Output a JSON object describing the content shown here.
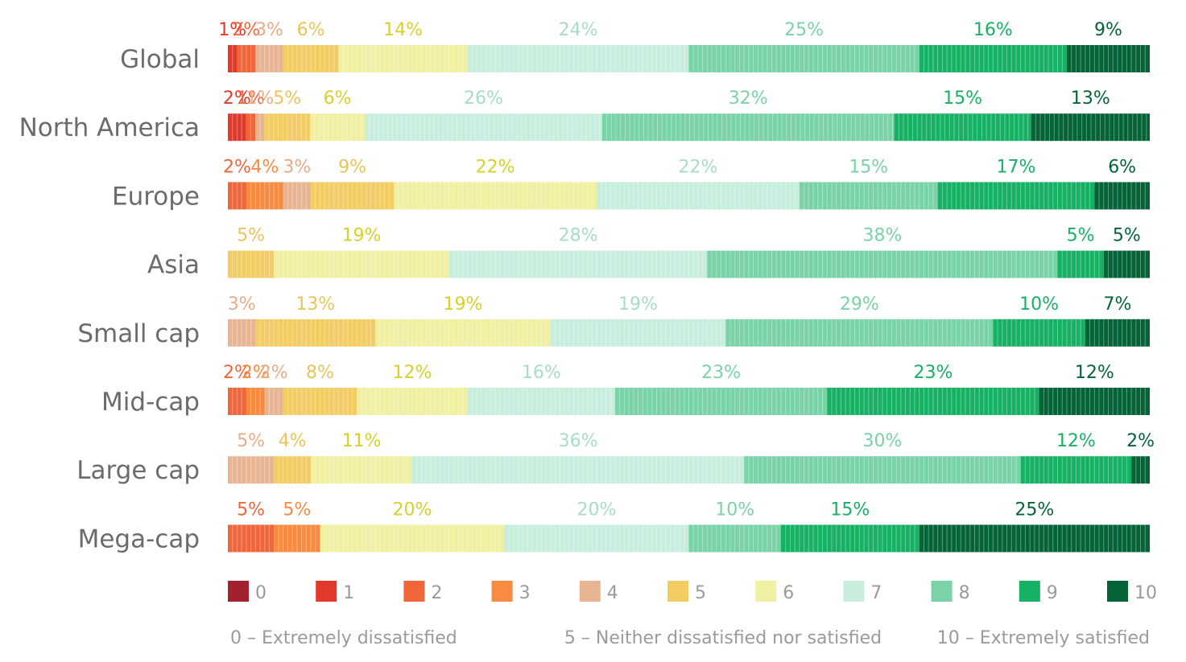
{
  "chart_data": {
    "type": "bar",
    "orientation": "horizontal",
    "stacked": true,
    "normalized": true,
    "categories": [
      "Global",
      "North America",
      "Europe",
      "Asia",
      "Small cap",
      "Mid-cap",
      "Large cap",
      "Mega-cap"
    ],
    "series": [
      {
        "name": "0",
        "color": "#a3202e",
        "values": [
          0,
          0,
          0,
          0,
          0,
          0,
          0,
          0
        ]
      },
      {
        "name": "1",
        "color": "#e2392c",
        "values": [
          1,
          2,
          0,
          0,
          0,
          0,
          0,
          0
        ]
      },
      {
        "name": "2",
        "color": "#f0653a",
        "values": [
          2,
          1,
          2,
          0,
          0,
          2,
          0,
          5
        ]
      },
      {
        "name": "3",
        "color": "#f98b40",
        "values": [
          0,
          0,
          4,
          0,
          0,
          2,
          0,
          5
        ]
      },
      {
        "name": "4",
        "color": "#e8b593",
        "values": [
          3,
          1,
          3,
          0,
          3,
          2,
          5,
          0
        ]
      },
      {
        "name": "5",
        "color": "#f2cd64",
        "values": [
          6,
          5,
          9,
          5,
          13,
          8,
          4,
          0
        ]
      },
      {
        "name": "6",
        "color": "#f1f0a2",
        "values": [
          14,
          6,
          22,
          19,
          19,
          12,
          11,
          20
        ]
      },
      {
        "name": "7",
        "color": "#c7eedd",
        "values": [
          24,
          26,
          22,
          28,
          19,
          16,
          36,
          20
        ]
      },
      {
        "name": "8",
        "color": "#79d3a7",
        "values": [
          25,
          32,
          15,
          38,
          29,
          23,
          30,
          10
        ]
      },
      {
        "name": "9",
        "color": "#16b164",
        "values": [
          16,
          15,
          17,
          5,
          10,
          23,
          12,
          15
        ]
      },
      {
        "name": "10",
        "color": "#056437",
        "values": [
          9,
          13,
          6,
          5,
          7,
          12,
          2,
          25
        ]
      }
    ],
    "label_colors": {
      "1": "#e2392c",
      "2": "#f0653a",
      "3": "#f98b40",
      "4": "#e8ac88",
      "5": "#e8c45a",
      "6": "#d7d02a",
      "7": "#a7dcc6",
      "8": "#79d3a7",
      "9": "#16b164",
      "10": "#056437"
    },
    "xlim": [
      0,
      100
    ],
    "legend_position": "bottom",
    "scale_notes": [
      "0 – Extremely dissatisfied",
      "5 – Neither dissatisfied nor satisfied",
      "10 – Extremely satisfied"
    ]
  }
}
